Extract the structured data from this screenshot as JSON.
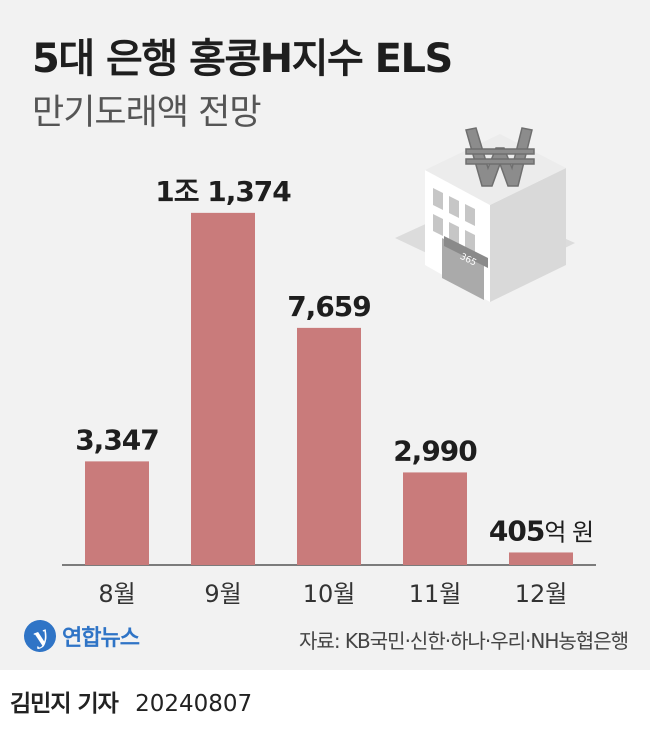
{
  "title": "5대 은행 홍콩H지수 ELS",
  "subtitle": "만기도래액 전망",
  "chart_data": {
    "type": "bar",
    "categories": [
      "8월",
      "9월",
      "10월",
      "11월",
      "12월"
    ],
    "values": [
      3347,
      11374,
      7659,
      2990,
      405
    ],
    "value_labels": [
      {
        "main": "3,347",
        "suffix": ""
      },
      {
        "main": "1조 1,374",
        "suffix": ""
      },
      {
        "main": "7,659",
        "suffix": ""
      },
      {
        "main": "2,990",
        "suffix": ""
      },
      {
        "main": "405",
        "suffix": "억 원"
      }
    ],
    "unit": "억 원",
    "ylim": [
      0,
      12500
    ],
    "bar_color": "#c97b7b",
    "grid": false
  },
  "illustration": {
    "icon": "bank-building-won-icon",
    "sign_text": "365"
  },
  "logo": {
    "mark": "y",
    "text": "연합뉴스",
    "color": "#2f74c6"
  },
  "source": "자료: KB국민·신한·하나·우리·NH농협은행",
  "byline": {
    "name": "김민지 기자",
    "date": "20240807"
  }
}
